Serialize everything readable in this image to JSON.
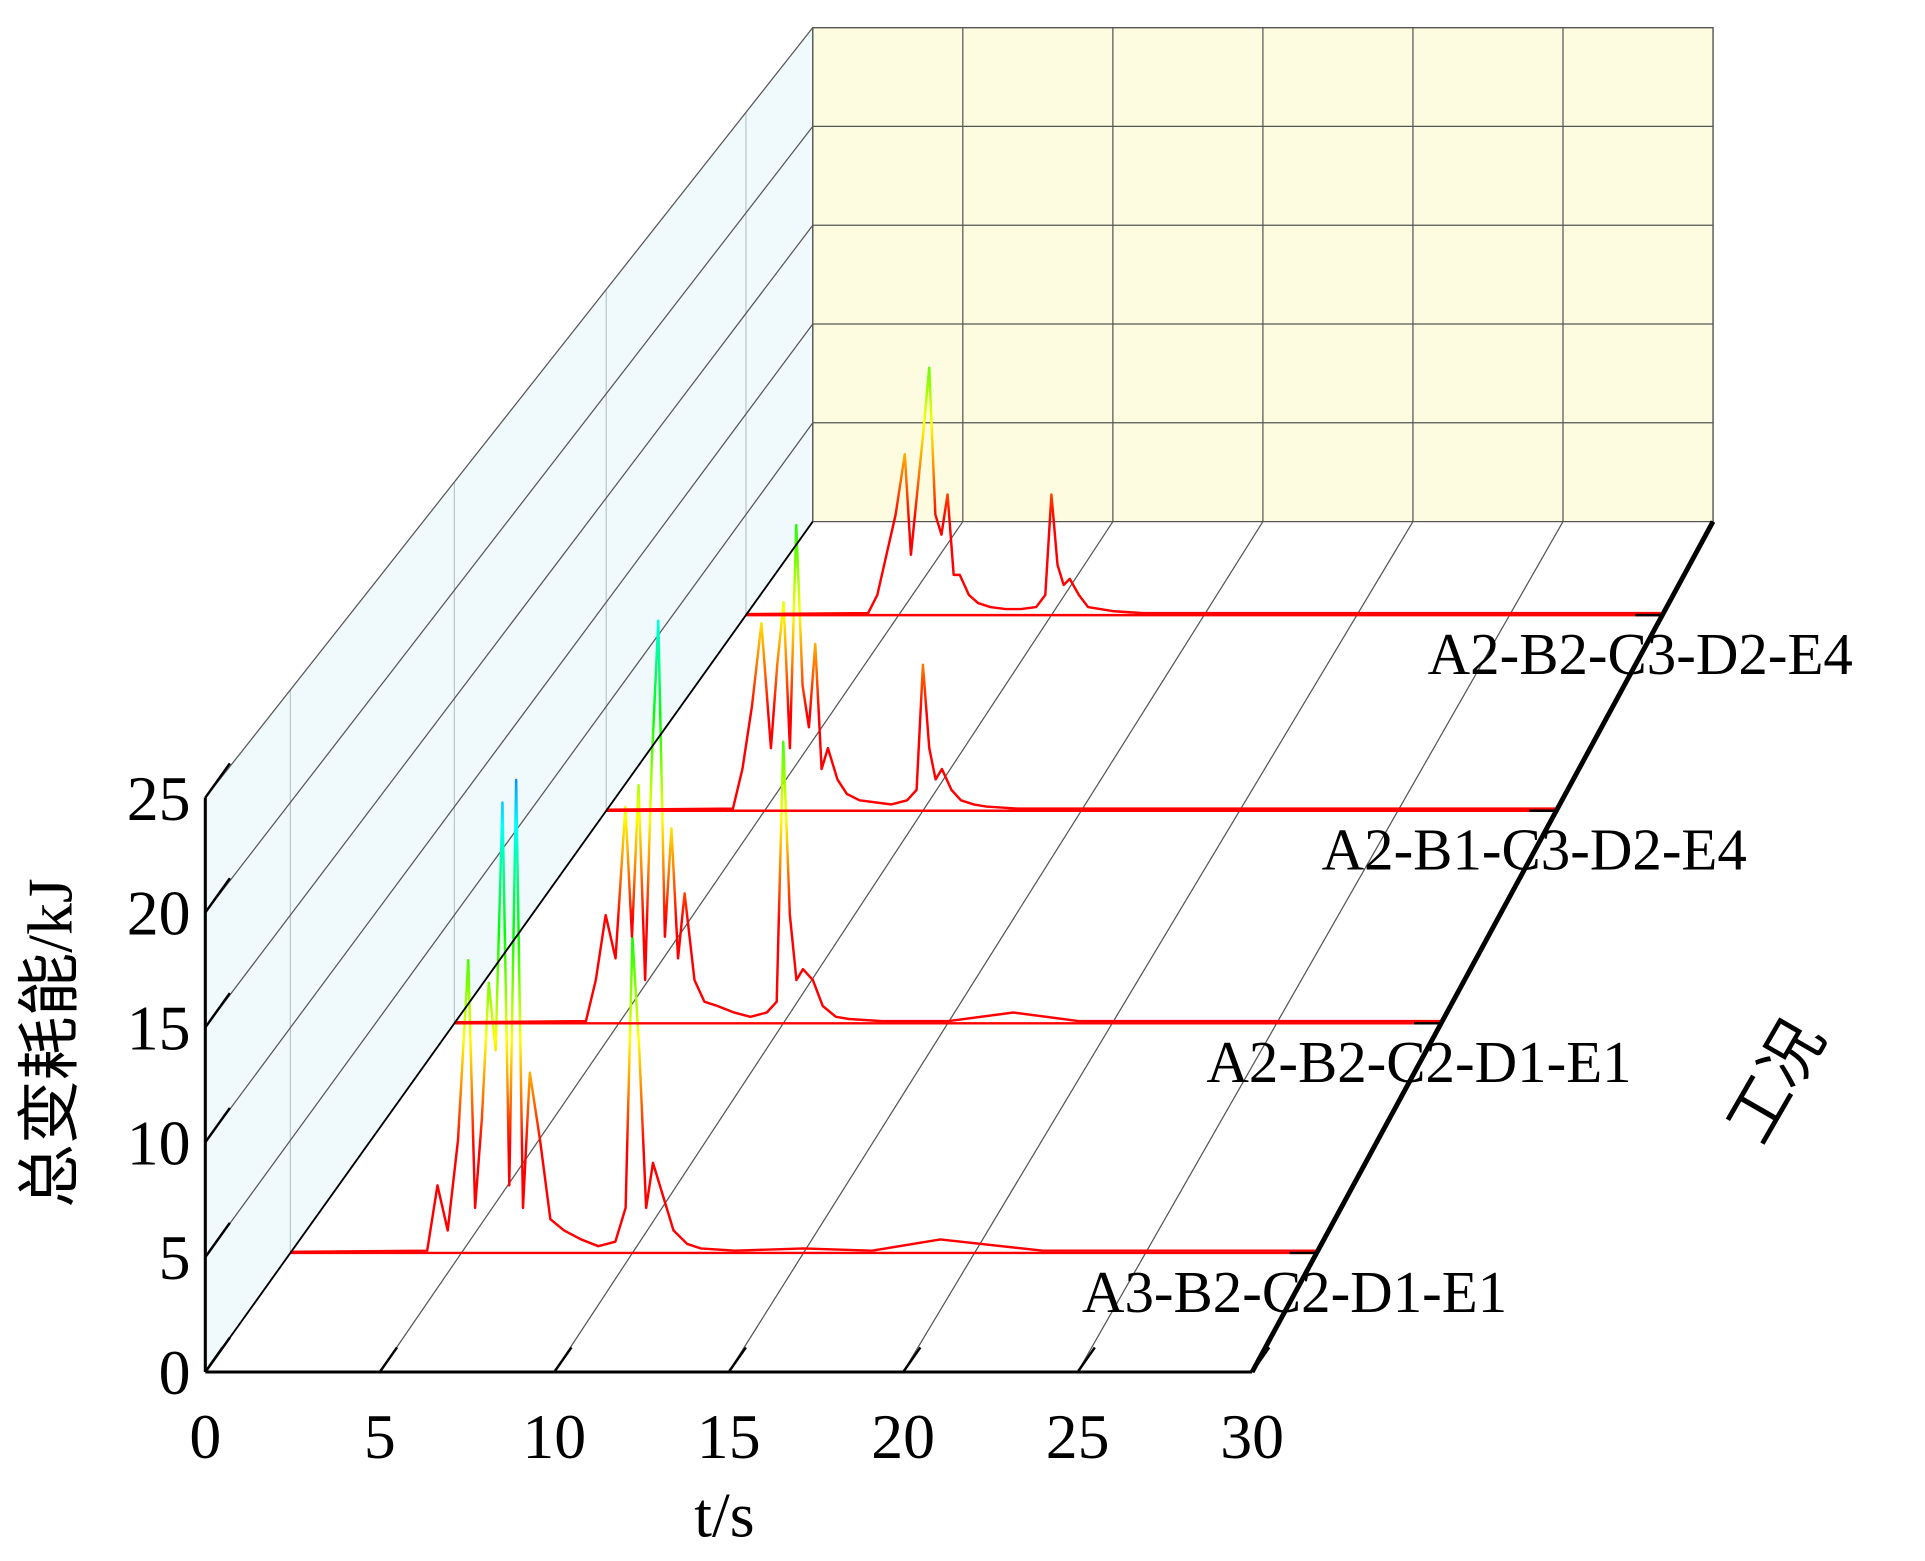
{
  "chart_data": {
    "type": "waterfall",
    "xlabel": "t/s",
    "ylabel": "总变耗能/kJ",
    "zlabel": "工况",
    "xlim": [
      0,
      30
    ],
    "xticks": [
      0,
      5,
      10,
      15,
      20,
      25,
      30
    ],
    "ylim": [
      0,
      25
    ],
    "yticks": [
      0,
      5,
      10,
      15,
      20,
      25
    ],
    "colormap": [
      "#ff0000",
      "#ffff00",
      "#00ff00",
      "#00ffff",
      "#0000ff"
    ],
    "x": [
      0,
      4,
      4.3,
      4.6,
      4.9,
      5.2,
      5.4,
      5.6,
      5.8,
      6,
      6.2,
      6.4,
      6.6,
      6.8,
      7,
      7.3,
      7.6,
      8,
      8.5,
      9,
      9.5,
      9.8,
      10,
      10.2,
      10.4,
      10.6,
      10.9,
      11.2,
      11.6,
      12,
      13,
      15,
      17,
      19,
      22,
      26,
      30
    ],
    "series": [
      {
        "name": "A3-B2-C2-D1-E1",
        "color": "#ff0000",
        "values": [
          0.05,
          0.1,
          3,
          1,
          5,
          13,
          2,
          6,
          12,
          9,
          20,
          3,
          21,
          2,
          8,
          5,
          1.5,
          1,
          0.6,
          0.3,
          0.5,
          2,
          14,
          9,
          2,
          4,
          2.5,
          1,
          0.4,
          0.2,
          0.1,
          0.2,
          0.1,
          0.6,
          0.1,
          0.1,
          0.1
        ]
      },
      {
        "name": "A2-B2-C2-D1-E1",
        "color": "#ff0000",
        "values": [
          0.05,
          0.1,
          2,
          5,
          3,
          10,
          4,
          11,
          2,
          12,
          18.6,
          4,
          9,
          3,
          6,
          2,
          1,
          0.8,
          0.5,
          0.3,
          0.5,
          1,
          13,
          5,
          2,
          2.5,
          2,
          0.8,
          0.3,
          0.2,
          0.1,
          0.1,
          0.5,
          0.1,
          0.1,
          0.1,
          0.1
        ]
      },
      {
        "name": "A2-B1-C3-D2-E4",
        "color": "#ff0000",
        "values": [
          0.05,
          0.1,
          2,
          5,
          9,
          3,
          7,
          10,
          3,
          13.7,
          6,
          4,
          8,
          2,
          3,
          1.5,
          0.8,
          0.5,
          0.4,
          0.3,
          0.5,
          1,
          7,
          3,
          1.5,
          2,
          1,
          0.5,
          0.3,
          0.2,
          0.1,
          0.1,
          0.1,
          0.1,
          0.1,
          0.1,
          0.1
        ]
      },
      {
        "name": "A2-B2-C3-D2-E4",
        "color": "#ff0000",
        "values": [
          0.05,
          0.1,
          1,
          3,
          5,
          8,
          3,
          6,
          9,
          12.3,
          5,
          4,
          6,
          2,
          2,
          1,
          0.6,
          0.4,
          0.3,
          0.3,
          0.4,
          1,
          6,
          2.5,
          1.5,
          1.8,
          1,
          0.4,
          0.3,
          0.2,
          0.1,
          0.1,
          0.1,
          0.1,
          0.1,
          0.1,
          0.1
        ]
      }
    ]
  }
}
